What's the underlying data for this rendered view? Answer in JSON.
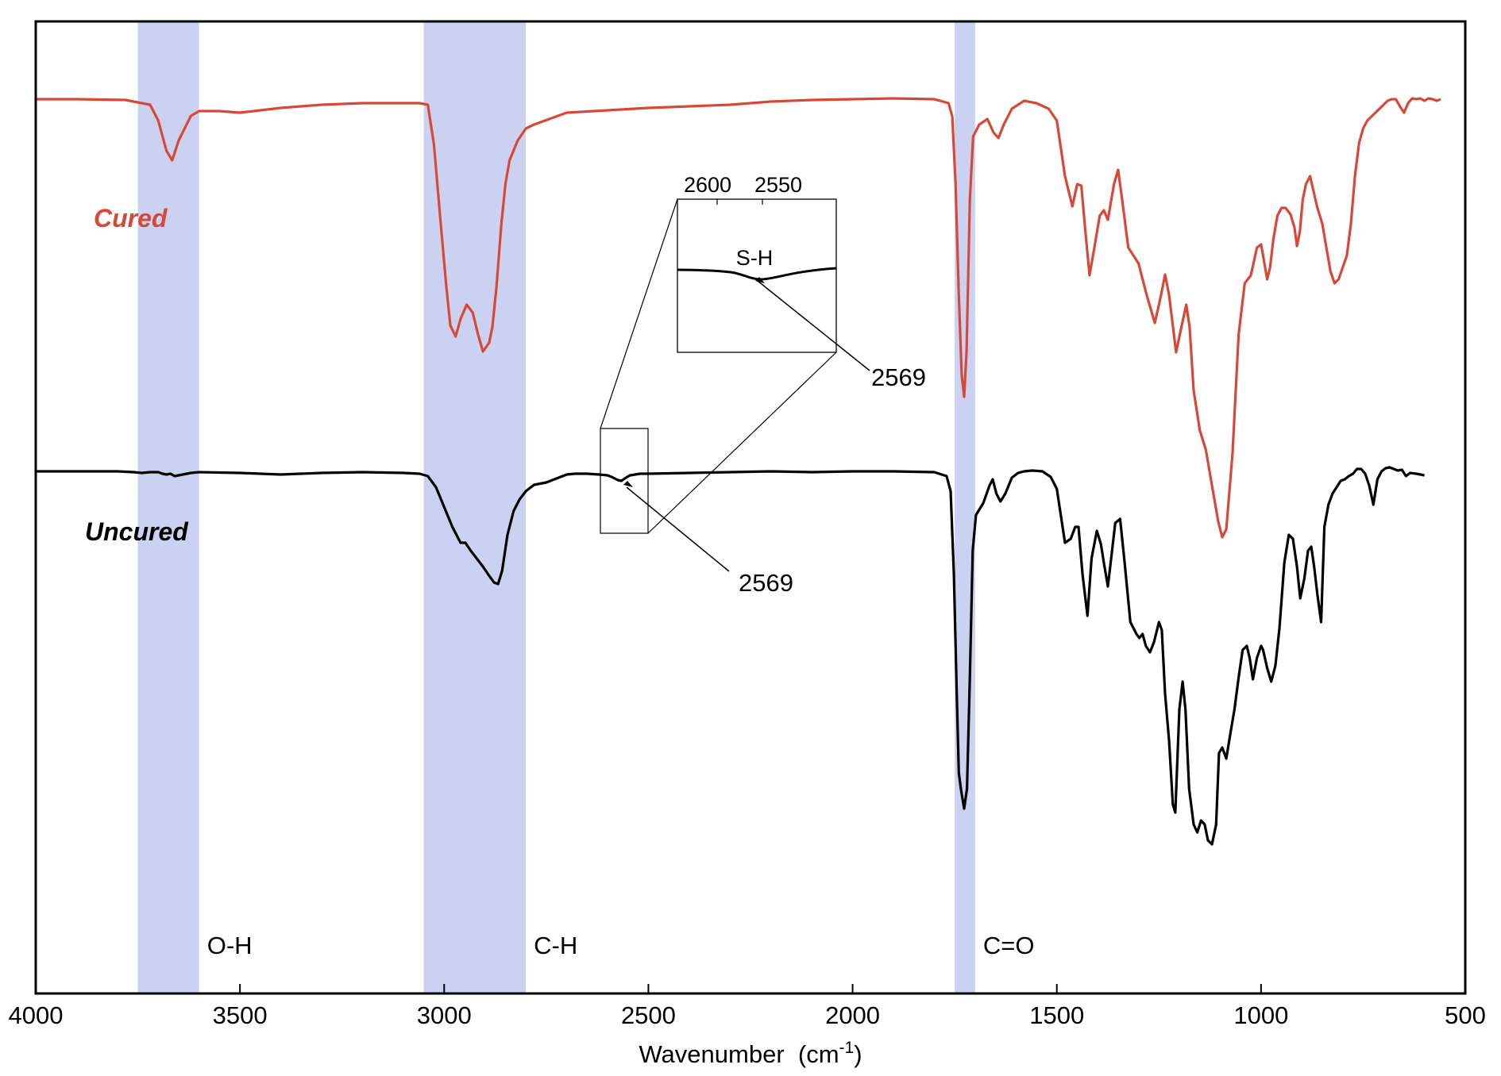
{
  "chart_data": {
    "type": "line",
    "xlabel": "Wavenumber  (cm",
    "xlabel_sup": "-1",
    "xlabel_close": ")",
    "xlim": [
      4000,
      500
    ],
    "x_reversed": true,
    "ticks": [
      4000,
      3500,
      3000,
      2500,
      2000,
      1500,
      1000,
      500
    ],
    "highlight_band_color": "#cbd2f1",
    "bands": [
      {
        "label": "O-H",
        "from": 3750,
        "to": 3600
      },
      {
        "label": "C-H",
        "from": 3050,
        "to": 2800
      },
      {
        "label": "C=O",
        "from": 1750,
        "to": 1700
      }
    ],
    "series": [
      {
        "name": "Cured",
        "color": "#d84838",
        "label_color": "#d84838",
        "points": [
          [
            4000,
            3
          ],
          [
            3900,
            3
          ],
          [
            3780,
            4
          ],
          [
            3720,
            10
          ],
          [
            3700,
            30
          ],
          [
            3680,
            68
          ],
          [
            3666,
            80
          ],
          [
            3650,
            55
          ],
          [
            3620,
            24
          ],
          [
            3600,
            18
          ],
          [
            3550,
            18
          ],
          [
            3500,
            20
          ],
          [
            3400,
            14
          ],
          [
            3300,
            10
          ],
          [
            3200,
            8
          ],
          [
            3060,
            8
          ],
          [
            3040,
            10
          ],
          [
            3025,
            60
          ],
          [
            3010,
            150
          ],
          [
            2995,
            238
          ],
          [
            2985,
            288
          ],
          [
            2972,
            302
          ],
          [
            2960,
            280
          ],
          [
            2945,
            262
          ],
          [
            2930,
            272
          ],
          [
            2918,
            298
          ],
          [
            2905,
            321
          ],
          [
            2890,
            310
          ],
          [
            2882,
            290
          ],
          [
            2872,
            240
          ],
          [
            2860,
            160
          ],
          [
            2850,
            110
          ],
          [
            2840,
            80
          ],
          [
            2820,
            55
          ],
          [
            2800,
            40
          ],
          [
            2780,
            35
          ],
          [
            2700,
            20
          ],
          [
            2600,
            17
          ],
          [
            2500,
            14
          ],
          [
            2400,
            12
          ],
          [
            2300,
            10
          ],
          [
            2200,
            6
          ],
          [
            2100,
            4
          ],
          [
            2000,
            3
          ],
          [
            1900,
            2
          ],
          [
            1800,
            3
          ],
          [
            1765,
            8
          ],
          [
            1756,
            25
          ],
          [
            1748,
            110
          ],
          [
            1740,
            250
          ],
          [
            1733,
            350
          ],
          [
            1727,
            378
          ],
          [
            1721,
            320
          ],
          [
            1713,
            130
          ],
          [
            1705,
            50
          ],
          [
            1690,
            35
          ],
          [
            1670,
            28
          ],
          [
            1655,
            45
          ],
          [
            1643,
            52
          ],
          [
            1630,
            35
          ],
          [
            1610,
            15
          ],
          [
            1580,
            5
          ],
          [
            1550,
            8
          ],
          [
            1520,
            15
          ],
          [
            1500,
            30
          ],
          [
            1480,
            100
          ],
          [
            1462,
            138
          ],
          [
            1450,
            110
          ],
          [
            1440,
            112
          ],
          [
            1430,
            170
          ],
          [
            1420,
            225
          ],
          [
            1408,
            190
          ],
          [
            1395,
            150
          ],
          [
            1385,
            143
          ],
          [
            1375,
            155
          ],
          [
            1360,
            110
          ],
          [
            1350,
            92
          ],
          [
            1340,
            130
          ],
          [
            1325,
            190
          ],
          [
            1300,
            210
          ],
          [
            1280,
            250
          ],
          [
            1260,
            285
          ],
          [
            1245,
            250
          ],
          [
            1235,
            224
          ],
          [
            1225,
            250
          ],
          [
            1208,
            322
          ],
          [
            1195,
            290
          ],
          [
            1183,
            262
          ],
          [
            1175,
            290
          ],
          [
            1165,
            370
          ],
          [
            1150,
            420
          ],
          [
            1135,
            445
          ],
          [
            1120,
            490
          ],
          [
            1105,
            535
          ],
          [
            1095,
            555
          ],
          [
            1085,
            545
          ],
          [
            1070,
            450
          ],
          [
            1055,
            300
          ],
          [
            1040,
            235
          ],
          [
            1025,
            225
          ],
          [
            1010,
            190
          ],
          [
            1000,
            186
          ],
          [
            995,
            200
          ],
          [
            985,
            230
          ],
          [
            978,
            215
          ],
          [
            970,
            180
          ],
          [
            960,
            150
          ],
          [
            950,
            140
          ],
          [
            940,
            140
          ],
          [
            928,
            148
          ],
          [
            918,
            165
          ],
          [
            912,
            188
          ],
          [
            905,
            170
          ],
          [
            898,
            130
          ],
          [
            890,
            110
          ],
          [
            880,
            100
          ],
          [
            872,
            118
          ],
          [
            862,
            140
          ],
          [
            850,
            160
          ],
          [
            840,
            190
          ],
          [
            830,
            220
          ],
          [
            820,
            235
          ],
          [
            810,
            230
          ],
          [
            800,
            215
          ],
          [
            790,
            200
          ],
          [
            780,
            160
          ],
          [
            770,
            100
          ],
          [
            760,
            58
          ],
          [
            750,
            40
          ],
          [
            740,
            30
          ],
          [
            720,
            20
          ],
          [
            700,
            10
          ],
          [
            690,
            5
          ],
          [
            680,
            3
          ],
          [
            670,
            3
          ],
          [
            660,
            12
          ],
          [
            650,
            20
          ],
          [
            640,
            8
          ],
          [
            630,
            2
          ],
          [
            620,
            3
          ],
          [
            610,
            2
          ],
          [
            600,
            5
          ],
          [
            590,
            2
          ],
          [
            580,
            3
          ],
          [
            570,
            5
          ],
          [
            560,
            3
          ]
        ]
      },
      {
        "name": "Uncured",
        "color": "#000000",
        "label_color": "#000000",
        "points": [
          [
            4000,
            0
          ],
          [
            3800,
            0
          ],
          [
            3760,
            1
          ],
          [
            3740,
            2
          ],
          [
            3720,
            1
          ],
          [
            3700,
            1
          ],
          [
            3690,
            3
          ],
          [
            3680,
            4
          ],
          [
            3670,
            3
          ],
          [
            3660,
            6
          ],
          [
            3640,
            4
          ],
          [
            3620,
            2
          ],
          [
            3600,
            1
          ],
          [
            3500,
            2
          ],
          [
            3400,
            4
          ],
          [
            3300,
            2
          ],
          [
            3200,
            1
          ],
          [
            3100,
            2
          ],
          [
            3060,
            3
          ],
          [
            3040,
            6
          ],
          [
            3020,
            20
          ],
          [
            3000,
            45
          ],
          [
            2980,
            70
          ],
          [
            2960,
            90
          ],
          [
            2948,
            90
          ],
          [
            2935,
            100
          ],
          [
            2920,
            110
          ],
          [
            2905,
            120
          ],
          [
            2892,
            130
          ],
          [
            2878,
            140
          ],
          [
            2868,
            142
          ],
          [
            2858,
            125
          ],
          [
            2845,
            80
          ],
          [
            2830,
            50
          ],
          [
            2815,
            35
          ],
          [
            2800,
            25
          ],
          [
            2780,
            17
          ],
          [
            2750,
            14
          ],
          [
            2720,
            8
          ],
          [
            2700,
            4
          ],
          [
            2680,
            3
          ],
          [
            2650,
            3
          ],
          [
            2620,
            4
          ],
          [
            2600,
            5
          ],
          [
            2590,
            7
          ],
          [
            2575,
            11
          ],
          [
            2566,
            12
          ],
          [
            2558,
            9
          ],
          [
            2545,
            5
          ],
          [
            2520,
            3
          ],
          [
            2500,
            3
          ],
          [
            2400,
            2
          ],
          [
            2300,
            1
          ],
          [
            2200,
            0
          ],
          [
            2100,
            1
          ],
          [
            2000,
            0
          ],
          [
            1900,
            0
          ],
          [
            1800,
            1
          ],
          [
            1770,
            6
          ],
          [
            1760,
            25
          ],
          [
            1752,
            130
          ],
          [
            1745,
            280
          ],
          [
            1740,
            380
          ],
          [
            1735,
            400
          ],
          [
            1727,
            425
          ],
          [
            1720,
            400
          ],
          [
            1713,
            260
          ],
          [
            1706,
            100
          ],
          [
            1698,
            55
          ],
          [
            1680,
            40
          ],
          [
            1665,
            18
          ],
          [
            1657,
            10
          ],
          [
            1648,
            28
          ],
          [
            1638,
            38
          ],
          [
            1626,
            28
          ],
          [
            1610,
            8
          ],
          [
            1595,
            2
          ],
          [
            1580,
            0
          ],
          [
            1560,
            -1
          ],
          [
            1535,
            0
          ],
          [
            1515,
            7
          ],
          [
            1500,
            22
          ],
          [
            1480,
            90
          ],
          [
            1466,
            85
          ],
          [
            1455,
            70
          ],
          [
            1447,
            70
          ],
          [
            1437,
            130
          ],
          [
            1425,
            182
          ],
          [
            1415,
            110
          ],
          [
            1402,
            75
          ],
          [
            1392,
            92
          ],
          [
            1385,
            115
          ],
          [
            1375,
            145
          ],
          [
            1367,
            110
          ],
          [
            1357,
            65
          ],
          [
            1345,
            60
          ],
          [
            1335,
            110
          ],
          [
            1320,
            190
          ],
          [
            1305,
            205
          ],
          [
            1298,
            210
          ],
          [
            1290,
            205
          ],
          [
            1282,
            220
          ],
          [
            1272,
            228
          ],
          [
            1262,
            215
          ],
          [
            1250,
            190
          ],
          [
            1243,
            200
          ],
          [
            1235,
            280
          ],
          [
            1225,
            340
          ],
          [
            1216,
            420
          ],
          [
            1210,
            430
          ],
          [
            1200,
            300
          ],
          [
            1192,
            265
          ],
          [
            1185,
            300
          ],
          [
            1176,
            400
          ],
          [
            1165,
            445
          ],
          [
            1156,
            455
          ],
          [
            1147,
            440
          ],
          [
            1138,
            445
          ],
          [
            1130,
            465
          ],
          [
            1120,
            470
          ],
          [
            1110,
            445
          ],
          [
            1103,
            355
          ],
          [
            1095,
            348
          ],
          [
            1085,
            362
          ],
          [
            1075,
            330
          ],
          [
            1065,
            300
          ],
          [
            1055,
            260
          ],
          [
            1045,
            225
          ],
          [
            1035,
            220
          ],
          [
            1028,
            235
          ],
          [
            1020,
            262
          ],
          [
            1010,
            235
          ],
          [
            1000,
            220
          ],
          [
            995,
            225
          ],
          [
            985,
            248
          ],
          [
            975,
            265
          ],
          [
            965,
            245
          ],
          [
            955,
            198
          ],
          [
            943,
            115
          ],
          [
            932,
            80
          ],
          [
            922,
            85
          ],
          [
            912,
            120
          ],
          [
            904,
            160
          ],
          [
            894,
            135
          ],
          [
            885,
            100
          ],
          [
            877,
            95
          ],
          [
            870,
            120
          ],
          [
            862,
            155
          ],
          [
            853,
            190
          ],
          [
            845,
            70
          ],
          [
            835,
            42
          ],
          [
            825,
            28
          ],
          [
            815,
            20
          ],
          [
            805,
            12
          ],
          [
            795,
            10
          ],
          [
            785,
            6
          ],
          [
            775,
            3
          ],
          [
            765,
            -3
          ],
          [
            755,
            -3
          ],
          [
            745,
            3
          ],
          [
            735,
            18
          ],
          [
            725,
            42
          ],
          [
            715,
            10
          ],
          [
            705,
            0
          ],
          [
            695,
            -4
          ],
          [
            685,
            -5
          ],
          [
            675,
            -3
          ],
          [
            665,
            -1
          ],
          [
            655,
            -2
          ],
          [
            645,
            6
          ],
          [
            635,
            2
          ],
          [
            620,
            3
          ],
          [
            600,
            5
          ]
        ]
      }
    ],
    "inset": {
      "tick_left": "2600",
      "tick_right": "2550",
      "label": "S-H"
    },
    "annotations": [
      {
        "text": "2569",
        "target": "cured-inset"
      },
      {
        "text": "2569",
        "target": "uncured"
      }
    ]
  }
}
